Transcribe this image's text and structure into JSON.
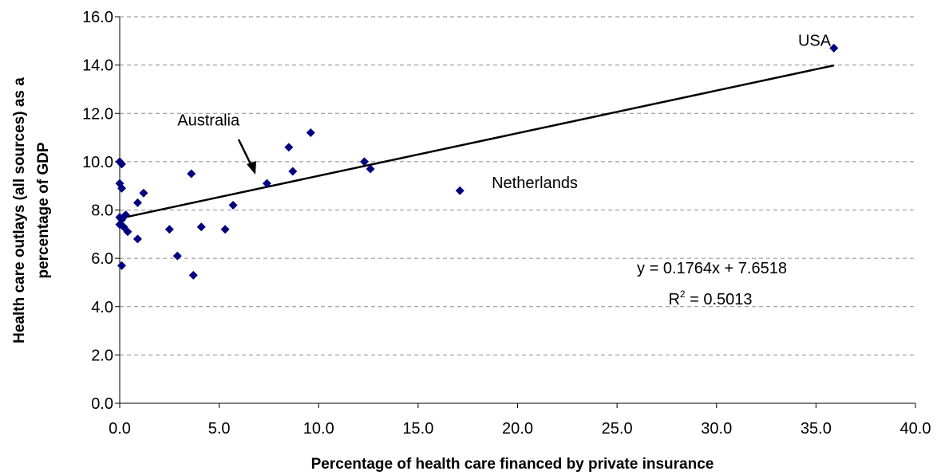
{
  "chart_data": {
    "type": "scatter",
    "title": "",
    "xlabel": "Percentage of health care financed by private insurance",
    "ylabel_lines": [
      "Health care outlays (all sources) as a",
      "percentage of GDP"
    ],
    "xlim": [
      0,
      40
    ],
    "ylim": [
      0,
      16
    ],
    "x_ticks": [
      "0.0",
      "5.0",
      "10.0",
      "15.0",
      "20.0",
      "25.0",
      "30.0",
      "35.0",
      "40.0"
    ],
    "y_ticks": [
      "0.0",
      "2.0",
      "4.0",
      "6.0",
      "8.0",
      "10.0",
      "12.0",
      "14.0",
      "16.0"
    ],
    "grid": "horizontal dashed",
    "marker_color": "#00007F",
    "points": [
      {
        "x": 0.0,
        "y": 10.0
      },
      {
        "x": 0.1,
        "y": 9.9
      },
      {
        "x": 0.0,
        "y": 9.1
      },
      {
        "x": 0.1,
        "y": 8.9
      },
      {
        "x": 0.0,
        "y": 7.7
      },
      {
        "x": 0.1,
        "y": 7.6
      },
      {
        "x": 0.0,
        "y": 7.4
      },
      {
        "x": 0.2,
        "y": 7.3
      },
      {
        "x": 0.1,
        "y": 5.7
      },
      {
        "x": 0.3,
        "y": 7.8
      },
      {
        "x": 0.4,
        "y": 7.1
      },
      {
        "x": 0.9,
        "y": 8.3
      },
      {
        "x": 1.2,
        "y": 8.7
      },
      {
        "x": 0.9,
        "y": 6.8
      },
      {
        "x": 2.5,
        "y": 7.2
      },
      {
        "x": 2.9,
        "y": 6.1
      },
      {
        "x": 3.6,
        "y": 9.5
      },
      {
        "x": 3.7,
        "y": 5.3
      },
      {
        "x": 4.1,
        "y": 7.3
      },
      {
        "x": 5.3,
        "y": 7.2
      },
      {
        "x": 5.7,
        "y": 8.2
      },
      {
        "x": 7.4,
        "y": 9.1
      },
      {
        "x": 8.5,
        "y": 10.6
      },
      {
        "x": 8.7,
        "y": 9.6
      },
      {
        "x": 9.6,
        "y": 11.2
      },
      {
        "x": 12.3,
        "y": 10.0
      },
      {
        "x": 12.6,
        "y": 9.7
      },
      {
        "x": 17.1,
        "y": 8.8
      },
      {
        "x": 35.9,
        "y": 14.7
      }
    ],
    "trendline": {
      "slope": 0.1764,
      "intercept": 7.6518,
      "x_range": [
        0,
        35.9
      ]
    },
    "equation_text": "y = 0.1764x + 7.6518",
    "r2_label": "R",
    "r2_sup": "2",
    "r2_value": " = 0.5013",
    "annotations": [
      {
        "text": "USA",
        "x": 34.1,
        "y": 14.8
      },
      {
        "text": "Netherlands",
        "x": 18.7,
        "y": 8.9
      },
      {
        "text": "Australia",
        "x": 2.9,
        "y": 11.5
      }
    ]
  }
}
